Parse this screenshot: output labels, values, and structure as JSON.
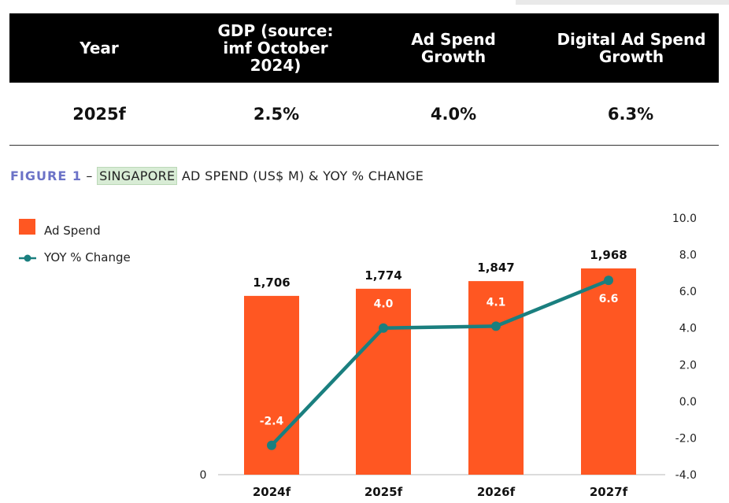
{
  "table": {
    "headers": [
      "Year",
      "GDP (source: imf October 2024)",
      "Ad Spend Growth",
      "Digital Ad Spend Growth"
    ],
    "header_lines": [
      [
        "Year"
      ],
      [
        "GDP (source:",
        "imf October",
        "2024)"
      ],
      [
        "Ad Spend",
        "Growth"
      ],
      [
        "Digital Ad Spend",
        "Growth"
      ]
    ],
    "row": [
      "2025f",
      "2.5%",
      "4.0%",
      "6.3%"
    ]
  },
  "figure": {
    "label": "FIGURE 1",
    "dash": "–",
    "country": "SINGAPORE",
    "rest": "AD SPEND (US$ M) & YOY % CHANGE"
  },
  "chart_data": {
    "type": "bar",
    "categories": [
      "2024f",
      "2025f",
      "2026f",
      "2027f"
    ],
    "series": [
      {
        "name": "Ad Spend",
        "kind": "bar",
        "axis": "left",
        "values": [
          1706,
          1774,
          1847,
          1968
        ],
        "labels": [
          "1,706",
          "1,774",
          "1,847",
          "1,968"
        ],
        "color": "#ff5722"
      },
      {
        "name": "YOY % Change",
        "kind": "line",
        "axis": "right",
        "values": [
          -2.4,
          4.0,
          4.1,
          6.6
        ],
        "labels": [
          "-2.4",
          "4.0",
          "4.1",
          "6.6"
        ],
        "color": "#1a7f7f"
      }
    ],
    "left_axis": {
      "min": 0,
      "tick_labels": [
        "0"
      ]
    },
    "right_axis": {
      "min": -4.0,
      "max": 10.0,
      "tick_values": [
        -4,
        -2,
        0,
        2,
        4,
        6,
        8,
        10
      ],
      "tick_labels": [
        "-4.0",
        "-2.0",
        "0.0",
        "2.0",
        "4.0",
        "6.0",
        "8.0",
        "10.0"
      ]
    },
    "legend_position": "top-left",
    "grid": false
  }
}
